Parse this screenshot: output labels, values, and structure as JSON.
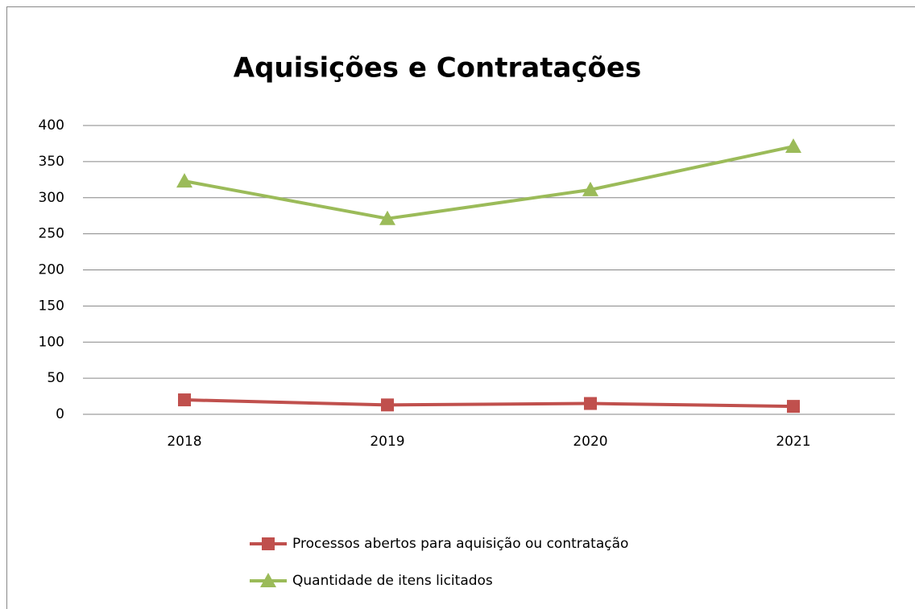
{
  "chart_data": {
    "type": "line",
    "title": "Aquisições  e Contratações",
    "categories": [
      "2018",
      "2019",
      "2020",
      "2021"
    ],
    "series": [
      {
        "name": "Processos abertos para aquisição ou contratação",
        "color": "#c0504d",
        "marker": "square",
        "values": [
          20,
          13,
          15,
          11
        ]
      },
      {
        "name": "Quantidade de itens licitados",
        "color": "#9bbb59",
        "marker": "triangle",
        "values": [
          323,
          271,
          311,
          371
        ]
      }
    ],
    "ylim": [
      0,
      400
    ],
    "yticks": [
      0,
      50,
      100,
      150,
      200,
      250,
      300,
      350,
      400
    ],
    "grid": true,
    "legend": "bottom"
  }
}
